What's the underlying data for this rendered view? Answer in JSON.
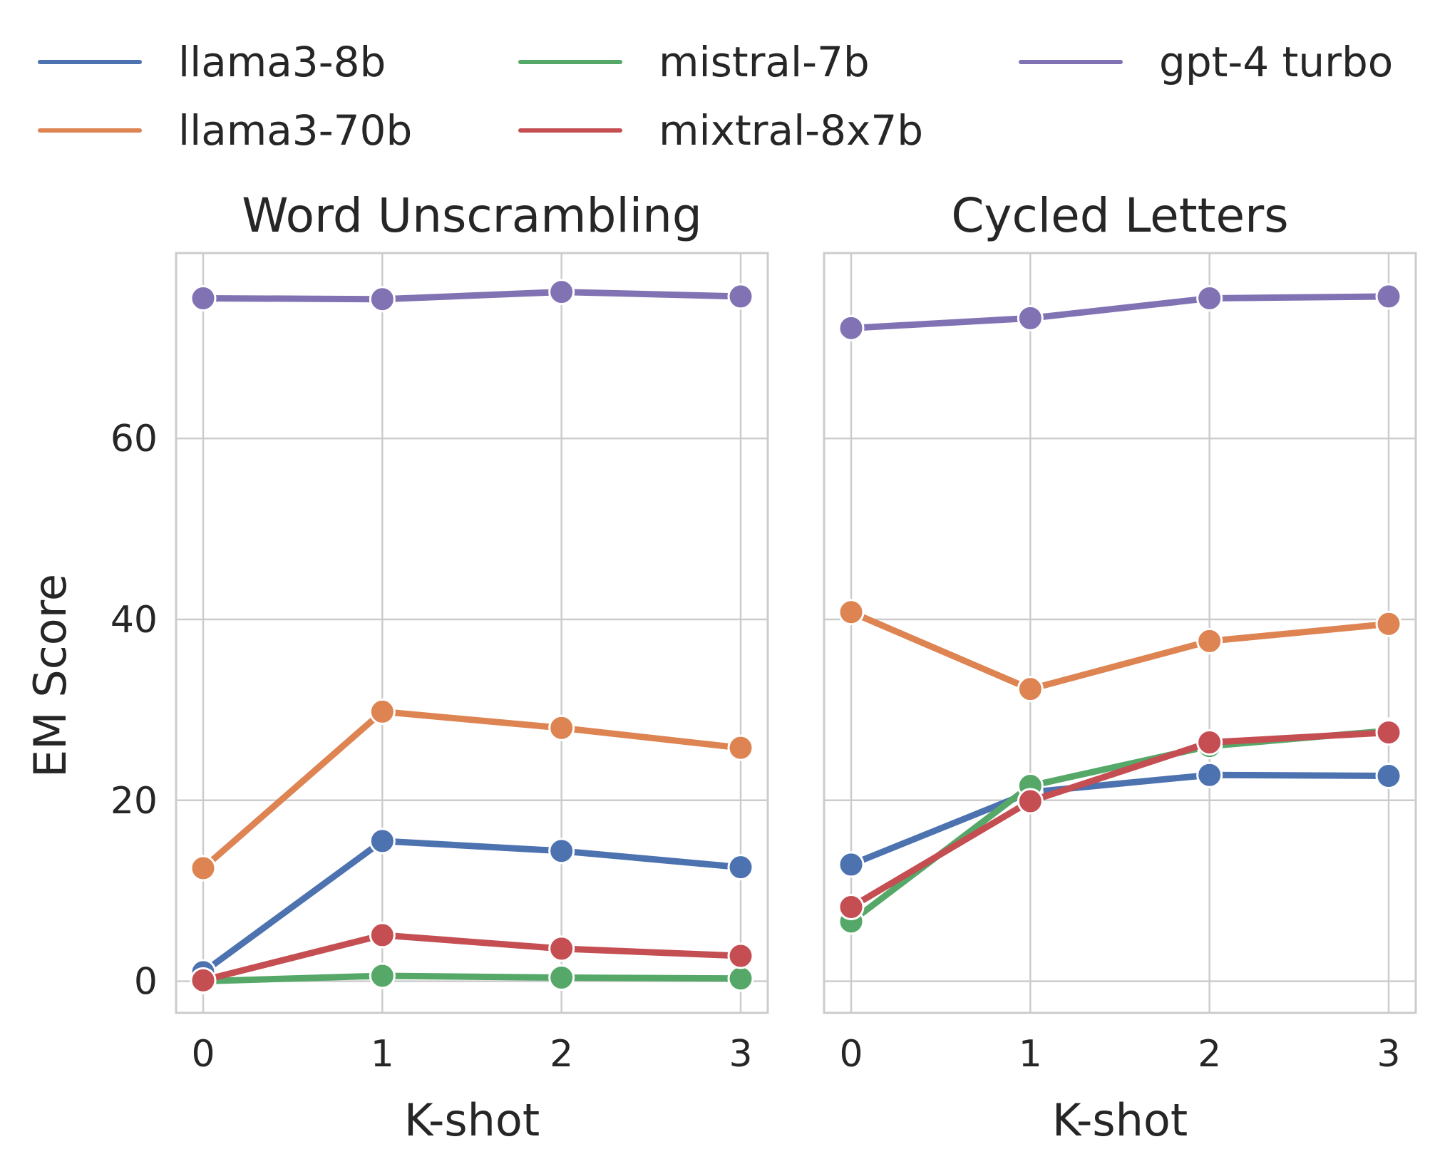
{
  "legend": {
    "placement": "top",
    "ncol": 3
  },
  "chart_data": [
    {
      "type": "line",
      "title": "Word Unscrambling",
      "xlabel": "K-shot",
      "ylabel": "EM Score",
      "x": [
        0,
        1,
        2,
        3
      ],
      "xticks": [
        "0",
        "1",
        "2",
        "3"
      ],
      "yticks": [
        "0",
        "20",
        "40",
        "60"
      ],
      "ylim": [
        -3.5,
        80.5
      ],
      "grid": true,
      "series": [
        {
          "name": "llama3-8b",
          "color": "#4c72b0",
          "values": [
            1.0,
            15.5,
            14.4,
            12.6
          ]
        },
        {
          "name": "llama3-70b",
          "color": "#dd8452",
          "values": [
            12.5,
            29.8,
            28.0,
            25.8
          ]
        },
        {
          "name": "mistral-7b",
          "color": "#55a868",
          "values": [
            0.0,
            0.6,
            0.4,
            0.3
          ]
        },
        {
          "name": "mixtral-8x7b",
          "color": "#c44e52",
          "values": [
            0.1,
            5.1,
            3.6,
            2.8
          ]
        },
        {
          "name": "gpt-4 turbo",
          "color": "#8172b3",
          "values": [
            75.5,
            75.4,
            76.2,
            75.7
          ]
        }
      ]
    },
    {
      "type": "line",
      "title": "Cycled Letters",
      "xlabel": "K-shot",
      "ylabel": "",
      "x": [
        0,
        1,
        2,
        3
      ],
      "xticks": [
        "0",
        "1",
        "2",
        "3"
      ],
      "yticks": [],
      "ylim": [
        -3.5,
        80.5
      ],
      "grid": true,
      "series": [
        {
          "name": "llama3-8b",
          "color": "#4c72b0",
          "values": [
            12.9,
            20.9,
            22.8,
            22.7
          ]
        },
        {
          "name": "llama3-70b",
          "color": "#dd8452",
          "values": [
            40.8,
            32.3,
            37.6,
            39.5
          ]
        },
        {
          "name": "mistral-7b",
          "color": "#55a868",
          "values": [
            6.6,
            21.6,
            26.0,
            27.7
          ]
        },
        {
          "name": "mixtral-8x7b",
          "color": "#c44e52",
          "values": [
            8.2,
            19.9,
            26.4,
            27.5
          ]
        },
        {
          "name": "gpt-4 turbo",
          "color": "#8172b3",
          "values": [
            72.2,
            73.3,
            75.5,
            75.7
          ]
        }
      ]
    }
  ]
}
